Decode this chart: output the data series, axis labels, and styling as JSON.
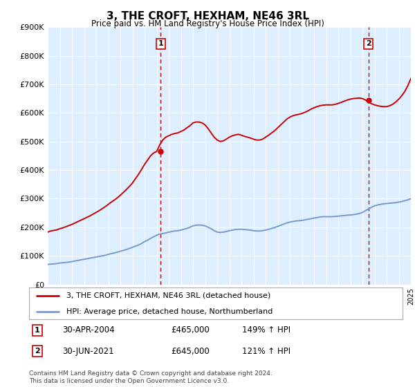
{
  "title": "3, THE CROFT, HEXHAM, NE46 3RL",
  "subtitle": "Price paid vs. HM Land Registry's House Price Index (HPI)",
  "red_line_label": "3, THE CROFT, HEXHAM, NE46 3RL (detached house)",
  "blue_line_label": "HPI: Average price, detached house, Northumberland",
  "sale1_date": "30-APR-2004",
  "sale1_price": "£465,000",
  "sale1_hpi": "149% ↑ HPI",
  "sale2_date": "30-JUN-2021",
  "sale2_price": "£645,000",
  "sale2_hpi": "121% ↑ HPI",
  "footer": "Contains HM Land Registry data © Crown copyright and database right 2024.\nThis data is licensed under the Open Government Licence v3.0.",
  "outer_bg_color": "#ffffff",
  "plot_bg_color": "#ddeeff",
  "red_color": "#cc0000",
  "blue_color": "#7799cc",
  "ytick_labels": [
    "£0",
    "£100K",
    "£200K",
    "£300K",
    "£400K",
    "£500K",
    "£600K",
    "£700K",
    "£800K",
    "£900K"
  ],
  "yticks": [
    0,
    100000,
    200000,
    300000,
    400000,
    500000,
    600000,
    700000,
    800000,
    900000
  ],
  "ylim": [
    0,
    900000
  ],
  "sale1_x": 2004.33,
  "sale1_y": 465000,
  "sale2_x": 2021.5,
  "sale2_y": 645000,
  "hpi_x": [
    1995.0,
    1995.25,
    1995.5,
    1995.75,
    1996.0,
    1996.25,
    1996.5,
    1996.75,
    1997.0,
    1997.25,
    1997.5,
    1997.75,
    1998.0,
    1998.25,
    1998.5,
    1998.75,
    1999.0,
    1999.25,
    1999.5,
    1999.75,
    2000.0,
    2000.25,
    2000.5,
    2000.75,
    2001.0,
    2001.25,
    2001.5,
    2001.75,
    2002.0,
    2002.25,
    2002.5,
    2002.75,
    2003.0,
    2003.25,
    2003.5,
    2003.75,
    2004.0,
    2004.25,
    2004.5,
    2004.75,
    2005.0,
    2005.25,
    2005.5,
    2005.75,
    2006.0,
    2006.25,
    2006.5,
    2006.75,
    2007.0,
    2007.25,
    2007.5,
    2007.75,
    2008.0,
    2008.25,
    2008.5,
    2008.75,
    2009.0,
    2009.25,
    2009.5,
    2009.75,
    2010.0,
    2010.25,
    2010.5,
    2010.75,
    2011.0,
    2011.25,
    2011.5,
    2011.75,
    2012.0,
    2012.25,
    2012.5,
    2012.75,
    2013.0,
    2013.25,
    2013.5,
    2013.75,
    2014.0,
    2014.25,
    2014.5,
    2014.75,
    2015.0,
    2015.25,
    2015.5,
    2015.75,
    2016.0,
    2016.25,
    2016.5,
    2016.75,
    2017.0,
    2017.25,
    2017.5,
    2017.75,
    2018.0,
    2018.25,
    2018.5,
    2018.75,
    2019.0,
    2019.25,
    2019.5,
    2019.75,
    2020.0,
    2020.25,
    2020.5,
    2020.75,
    2021.0,
    2021.25,
    2021.5,
    2021.75,
    2022.0,
    2022.25,
    2022.5,
    2022.75,
    2023.0,
    2023.25,
    2023.5,
    2023.75,
    2024.0,
    2024.25,
    2024.5,
    2024.75,
    2025.0
  ],
  "hpi_y": [
    70000,
    71000,
    72000,
    73000,
    75000,
    76000,
    77000,
    78000,
    80000,
    82000,
    84000,
    86000,
    88000,
    90000,
    92000,
    94000,
    96000,
    98000,
    100000,
    102000,
    105000,
    108000,
    110000,
    113000,
    116000,
    119000,
    122000,
    126000,
    130000,
    134000,
    138000,
    143000,
    150000,
    155000,
    161000,
    167000,
    172000,
    176000,
    178000,
    180000,
    183000,
    185000,
    187000,
    188000,
    190000,
    193000,
    196000,
    200000,
    205000,
    207000,
    208000,
    207000,
    205000,
    200000,
    195000,
    188000,
    183000,
    182000,
    183000,
    185000,
    188000,
    190000,
    192000,
    193000,
    193000,
    192000,
    191000,
    190000,
    188000,
    187000,
    187000,
    188000,
    190000,
    193000,
    196000,
    199000,
    203000,
    207000,
    211000,
    215000,
    218000,
    220000,
    222000,
    223000,
    224000,
    226000,
    228000,
    230000,
    232000,
    234000,
    236000,
    237000,
    237000,
    237000,
    237000,
    238000,
    239000,
    240000,
    241000,
    242000,
    243000,
    244000,
    246000,
    248000,
    252000,
    258000,
    264000,
    270000,
    275000,
    278000,
    280000,
    282000,
    283000,
    284000,
    285000,
    286000,
    288000,
    290000,
    293000,
    296000,
    300000
  ],
  "red_x": [
    1995.0,
    1995.25,
    1995.5,
    1995.75,
    1996.0,
    1996.25,
    1996.5,
    1996.75,
    1997.0,
    1997.25,
    1997.5,
    1997.75,
    1998.0,
    1998.25,
    1998.5,
    1998.75,
    1999.0,
    1999.25,
    1999.5,
    1999.75,
    2000.0,
    2000.25,
    2000.5,
    2000.75,
    2001.0,
    2001.25,
    2001.5,
    2001.75,
    2002.0,
    2002.25,
    2002.5,
    2002.75,
    2003.0,
    2003.25,
    2003.5,
    2003.75,
    2004.0,
    2004.25,
    2004.5,
    2004.75,
    2005.0,
    2005.25,
    2005.5,
    2005.75,
    2006.0,
    2006.25,
    2006.5,
    2006.75,
    2007.0,
    2007.25,
    2007.5,
    2007.75,
    2008.0,
    2008.25,
    2008.5,
    2008.75,
    2009.0,
    2009.25,
    2009.5,
    2009.75,
    2010.0,
    2010.25,
    2010.5,
    2010.75,
    2011.0,
    2011.25,
    2011.5,
    2011.75,
    2012.0,
    2012.25,
    2012.5,
    2012.75,
    2013.0,
    2013.25,
    2013.5,
    2013.75,
    2014.0,
    2014.25,
    2014.5,
    2014.75,
    2015.0,
    2015.25,
    2015.5,
    2015.75,
    2016.0,
    2016.25,
    2016.5,
    2016.75,
    2017.0,
    2017.25,
    2017.5,
    2017.75,
    2018.0,
    2018.25,
    2018.5,
    2018.75,
    2019.0,
    2019.25,
    2019.5,
    2019.75,
    2020.0,
    2020.25,
    2020.5,
    2020.75,
    2021.0,
    2021.25,
    2021.5,
    2021.75,
    2022.0,
    2022.25,
    2022.5,
    2022.75,
    2023.0,
    2023.25,
    2023.5,
    2023.75,
    2024.0,
    2024.25,
    2024.5,
    2024.75,
    2025.0
  ],
  "red_y": [
    183000,
    187000,
    189000,
    191000,
    195000,
    198000,
    202000,
    206000,
    210000,
    215000,
    220000,
    225000,
    230000,
    235000,
    240000,
    246000,
    252000,
    258000,
    265000,
    272000,
    280000,
    288000,
    295000,
    303000,
    312000,
    322000,
    332000,
    343000,
    355000,
    370000,
    385000,
    402000,
    420000,
    435000,
    450000,
    460000,
    465000,
    488000,
    505000,
    515000,
    520000,
    525000,
    528000,
    530000,
    535000,
    540000,
    548000,
    555000,
    565000,
    568000,
    568000,
    565000,
    558000,
    545000,
    530000,
    515000,
    505000,
    500000,
    502000,
    508000,
    515000,
    520000,
    523000,
    525000,
    522000,
    518000,
    515000,
    512000,
    508000,
    505000,
    505000,
    508000,
    515000,
    522000,
    530000,
    538000,
    548000,
    558000,
    568000,
    578000,
    585000,
    590000,
    593000,
    595000,
    598000,
    602000,
    607000,
    613000,
    618000,
    622000,
    625000,
    627000,
    628000,
    628000,
    628000,
    630000,
    633000,
    637000,
    641000,
    645000,
    648000,
    650000,
    651000,
    652000,
    650000,
    645000,
    638000,
    632000,
    628000,
    625000,
    623000,
    622000,
    622000,
    625000,
    630000,
    638000,
    648000,
    660000,
    675000,
    695000,
    720000
  ],
  "xmin": 1995,
  "xmax": 2025
}
